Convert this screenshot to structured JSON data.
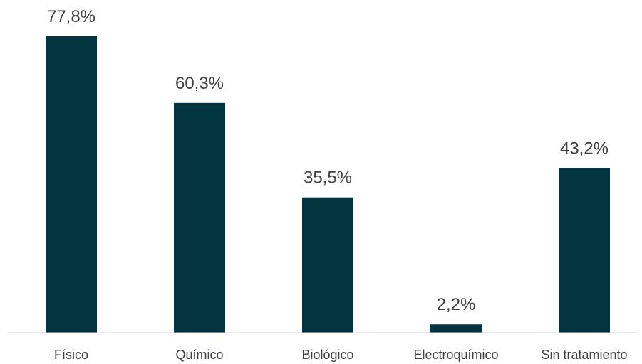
{
  "chart_data": {
    "type": "bar",
    "categories": [
      "Físico",
      "Químico",
      "Biológico",
      "Electroquímico",
      "Sin tratamiento"
    ],
    "values": [
      77.8,
      60.3,
      35.5,
      2.2,
      43.2
    ],
    "value_labels": [
      "77,8%",
      "60,3%",
      "35,5%",
      "2,2%",
      "43,2%"
    ],
    "title": "",
    "xlabel": "",
    "ylabel": "",
    "ylim": [
      0,
      77.8
    ],
    "grid": false,
    "legend": "none",
    "bar_color": "#02353f",
    "axis_color": "#d9d9d9",
    "text_color": "#404040"
  }
}
